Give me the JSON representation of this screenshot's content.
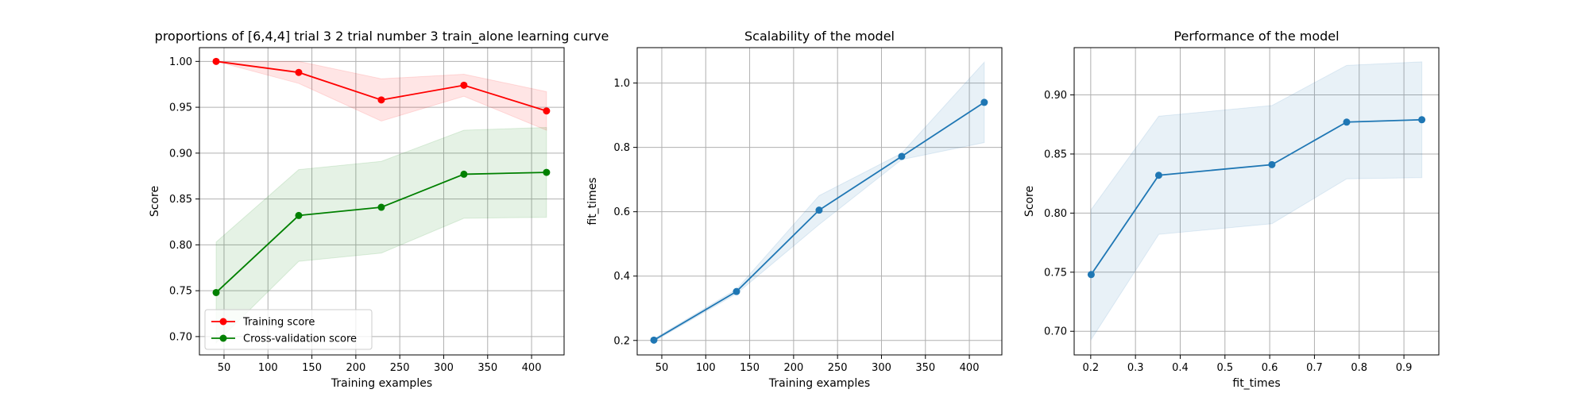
{
  "chart_data": [
    {
      "type": "line",
      "title": "proportions of [6,4,4] trial 3 2 trial number 3 train_alone learning curve",
      "xlabel": "Training examples",
      "ylabel": "Score",
      "xlim": [
        22,
        437
      ],
      "ylim": [
        0.68,
        1.015
      ],
      "xticks": [
        50,
        100,
        150,
        200,
        250,
        300,
        350,
        400
      ],
      "yticks": [
        0.7,
        0.75,
        0.8,
        0.85,
        0.9,
        0.95,
        1.0
      ],
      "ytick_decimals": 2,
      "grid": true,
      "legend": "lower-left",
      "series": [
        {
          "name": "Training score",
          "color": "#ff0000",
          "x": [
            41,
            135,
            229,
            323,
            417
          ],
          "y": [
            1.0,
            0.988,
            0.958,
            0.974,
            0.946
          ],
          "band_lower": [
            1.0,
            0.976,
            0.935,
            0.962,
            0.925
          ],
          "band_upper": [
            1.0,
            1.0,
            0.981,
            0.986,
            0.967
          ]
        },
        {
          "name": "Cross-validation score",
          "color": "#008000",
          "x": [
            41,
            135,
            229,
            323,
            417
          ],
          "y": [
            0.748,
            0.832,
            0.841,
            0.877,
            0.879
          ],
          "band_lower": [
            0.693,
            0.782,
            0.791,
            0.829,
            0.83
          ],
          "band_upper": [
            0.803,
            0.882,
            0.891,
            0.925,
            0.928
          ]
        }
      ]
    },
    {
      "type": "line",
      "title": "Scalability of the model",
      "xlabel": "Training examples",
      "ylabel": "fit_times",
      "xlim": [
        22,
        437
      ],
      "ylim": [
        0.155,
        1.11
      ],
      "xticks": [
        50,
        100,
        150,
        200,
        250,
        300,
        350,
        400
      ],
      "yticks": [
        0.2,
        0.4,
        0.6,
        0.8,
        1.0
      ],
      "ytick_decimals": 1,
      "grid": true,
      "series": [
        {
          "color": "#1f77b4",
          "x": [
            41,
            135,
            229,
            323,
            417
          ],
          "y": [
            0.201,
            0.352,
            0.605,
            0.772,
            0.94
          ],
          "band_lower": [
            0.197,
            0.345,
            0.56,
            0.762,
            0.815
          ],
          "band_upper": [
            0.205,
            0.359,
            0.65,
            0.782,
            1.065
          ]
        }
      ]
    },
    {
      "type": "line",
      "title": "Performance of the model",
      "xlabel": "fit_times",
      "ylabel": "Score",
      "xlim": [
        0.163,
        0.978
      ],
      "ylim": [
        0.68,
        0.94
      ],
      "xticks": [
        0.2,
        0.3,
        0.4,
        0.5,
        0.6,
        0.7,
        0.8,
        0.9
      ],
      "xtick_decimals": 1,
      "yticks": [
        0.7,
        0.75,
        0.8,
        0.85,
        0.9
      ],
      "ytick_decimals": 2,
      "grid": true,
      "series": [
        {
          "color": "#1f77b4",
          "x": [
            0.201,
            0.352,
            0.605,
            0.772,
            0.94
          ],
          "y": [
            0.748,
            0.832,
            0.841,
            0.877,
            0.879
          ],
          "band_lower": [
            0.693,
            0.782,
            0.791,
            0.829,
            0.83
          ],
          "band_upper": [
            0.803,
            0.882,
            0.891,
            0.925,
            0.928
          ]
        }
      ]
    }
  ]
}
